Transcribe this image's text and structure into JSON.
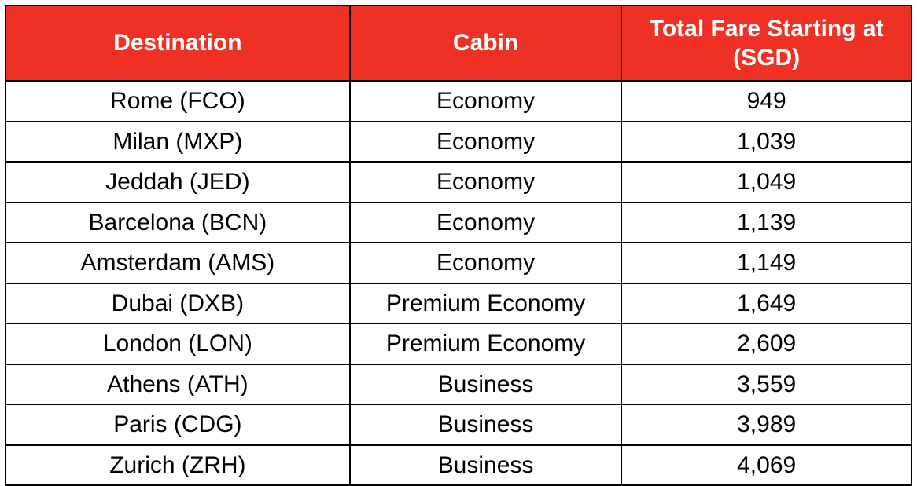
{
  "table": {
    "type": "table",
    "header_bg": "#ee3124",
    "header_text_color": "#ffffff",
    "body_text_color": "#000000",
    "border_color": "#000000",
    "background_color": "#ffffff",
    "header_fontsize": 30,
    "header_fontweight": 700,
    "body_fontsize": 30,
    "body_fontweight": 400,
    "columns": [
      {
        "label": "Destination",
        "width_pct": 38,
        "align": "center"
      },
      {
        "label": "Cabin",
        "width_pct": 30,
        "align": "center"
      },
      {
        "label": "Total Fare Starting at (SGD)",
        "width_pct": 32,
        "align": "center"
      }
    ],
    "rows": [
      {
        "destination": "Rome (FCO)",
        "cabin": "Economy",
        "fare": "949"
      },
      {
        "destination": "Milan (MXP)",
        "cabin": "Economy",
        "fare": "1,039"
      },
      {
        "destination": "Jeddah (JED)",
        "cabin": "Economy",
        "fare": "1,049"
      },
      {
        "destination": "Barcelona (BCN)",
        "cabin": "Economy",
        "fare": "1,139"
      },
      {
        "destination": "Amsterdam (AMS)",
        "cabin": "Economy",
        "fare": "1,149"
      },
      {
        "destination": "Dubai (DXB)",
        "cabin": "Premium Economy",
        "fare": "1,649"
      },
      {
        "destination": "London (LON)",
        "cabin": "Premium Economy",
        "fare": "2,609"
      },
      {
        "destination": "Athens (ATH)",
        "cabin": "Business",
        "fare": "3,559"
      },
      {
        "destination": "Paris (CDG)",
        "cabin": "Business",
        "fare": "3,989"
      },
      {
        "destination": "Zurich (ZRH)",
        "cabin": "Business",
        "fare": "4,069"
      }
    ]
  }
}
